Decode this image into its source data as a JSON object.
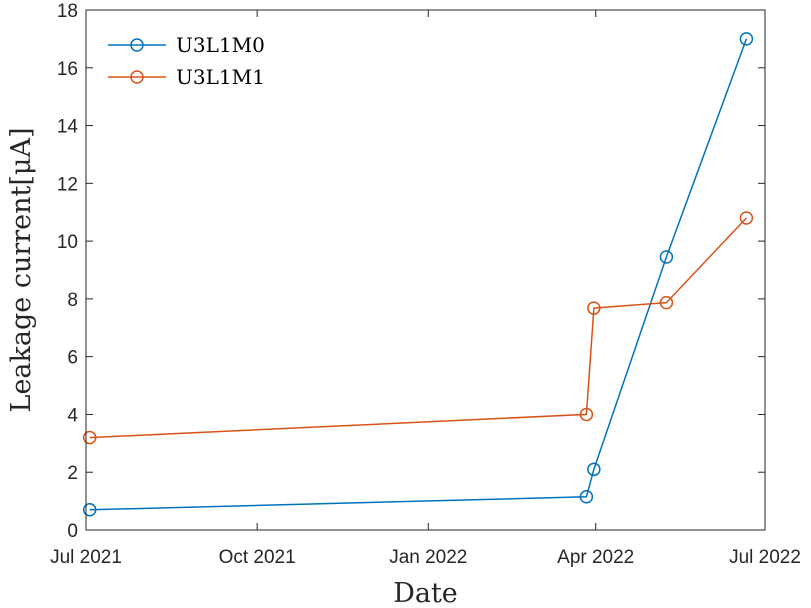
{
  "chart_data": {
    "type": "line",
    "xlabel": "Date",
    "ylabel": "Leakage current[μA]",
    "x_axis_type": "date",
    "xlim": [
      "2021-07-01",
      "2022-07-01"
    ],
    "ylim": [
      0,
      18
    ],
    "xticks": [
      {
        "date": "2021-07-01",
        "label": "Jul 2021"
      },
      {
        "date": "2021-10-01",
        "label": "Oct 2021"
      },
      {
        "date": "2022-01-01",
        "label": "Jan 2022"
      },
      {
        "date": "2022-04-01",
        "label": "Apr 2022"
      },
      {
        "date": "2022-07-01",
        "label": "Jul 2022"
      }
    ],
    "yticks": [
      0,
      2,
      4,
      6,
      8,
      10,
      12,
      14,
      16,
      18
    ],
    "grid": false,
    "legend_position": "top-left",
    "series": [
      {
        "name": "U3L1M0",
        "color": "#0072BD",
        "marker": "circle",
        "x": [
          "2021-07-03",
          "2022-03-27",
          "2022-03-31",
          "2022-05-09",
          "2022-06-21"
        ],
        "y": [
          0.7,
          1.15,
          2.1,
          9.45,
          17.0
        ]
      },
      {
        "name": "U3L1M1",
        "color": "#D95319",
        "marker": "circle",
        "x": [
          "2021-07-03",
          "2022-03-27",
          "2022-03-31",
          "2022-05-09",
          "2022-06-21"
        ],
        "y": [
          3.2,
          4.0,
          7.68,
          7.87,
          10.8
        ]
      }
    ]
  }
}
